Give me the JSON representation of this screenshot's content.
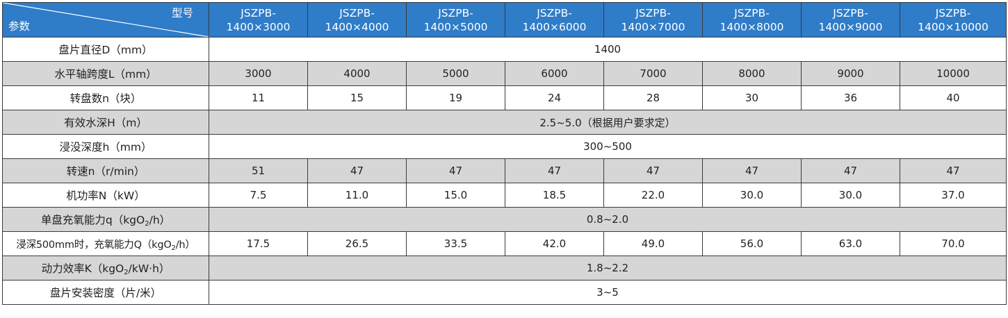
{
  "header": {
    "corner_type_label": "型号",
    "corner_param_label": "参数",
    "models": [
      {
        "line1": "JSZPB-",
        "line2": "1400×3000"
      },
      {
        "line1": "JSZPB-",
        "line2": "1400×4000"
      },
      {
        "line1": "JSZPB-",
        "line2": "1400×5000"
      },
      {
        "line1": "JSZPB-",
        "line2": "1400×6000"
      },
      {
        "line1": "JSZPB-",
        "line2": "1400×7000"
      },
      {
        "line1": "JSZPB-",
        "line2": "1400×8000"
      },
      {
        "line1": "JSZPB-",
        "line2": "1400×9000"
      },
      {
        "line1": "JSZPB-",
        "line2": "1400×10000"
      }
    ]
  },
  "rows": {
    "disc_diameter": {
      "label": "盘片直径D（mm）",
      "value": "1400"
    },
    "shaft_span": {
      "label": "水平轴跨度L（mm）",
      "values": [
        "3000",
        "4000",
        "5000",
        "6000",
        "7000",
        "8000",
        "9000",
        "10000"
      ]
    },
    "disc_count": {
      "label": "转盘数n（块）",
      "values": [
        "11",
        "15",
        "19",
        "24",
        "28",
        "30",
        "36",
        "40"
      ]
    },
    "water_depth": {
      "label": "有效水深H（m）",
      "value": "2.5~5.0（根据用户要求定）"
    },
    "immersion_depth": {
      "label": "浸没深度h（mm）",
      "value": "300~500"
    },
    "speed": {
      "label": "转速n（r/min）",
      "values": [
        "51",
        "47",
        "47",
        "47",
        "47",
        "47",
        "47",
        "47"
      ]
    },
    "motor_power": {
      "label": "机功率N（kW）",
      "values": [
        "7.5",
        "11.0",
        "15.0",
        "18.5",
        "22.0",
        "30.0",
        "30.0",
        "37.0"
      ]
    },
    "single_disc_oxygenation": {
      "label_pre": "单盘充氧能力q（kgO",
      "label_sub": "2",
      "label_post": "/h）",
      "value": "0.8~2.0"
    },
    "oxygenation_500": {
      "label_pre": "浸深500mm时，充氧能力Q（kgO",
      "label_sub": "2",
      "label_post": "/h）",
      "values": [
        "17.5",
        "26.5",
        "33.5",
        "42.0",
        "49.0",
        "56.0",
        "63.0",
        "70.0"
      ]
    },
    "power_efficiency": {
      "label_pre": "动力效率K（kgO",
      "label_sub": "2",
      "label_post": "/kW·h）",
      "value": "1.8~2.2"
    },
    "install_density": {
      "label": "盘片安装密度（片/米）",
      "value": "3~5"
    }
  },
  "colors": {
    "header_blue": "#2f7cc8",
    "shade_gray": "#d6d6d6",
    "border": "#3a3a3a"
  }
}
